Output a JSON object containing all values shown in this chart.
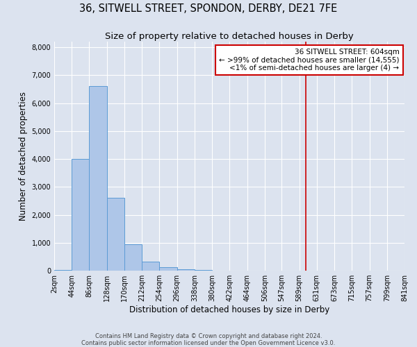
{
  "title": "36, SITWELL STREET, SPONDON, DERBY, DE21 7FE",
  "subtitle": "Size of property relative to detached houses in Derby",
  "xlabel": "Distribution of detached houses by size in Derby",
  "ylabel": "Number of detached properties",
  "bar_color": "#aec6e8",
  "bar_edge_color": "#5b9bd5",
  "background_color": "#dce3ef",
  "bin_edges": [
    2,
    44,
    86,
    128,
    170,
    212,
    254,
    296,
    338,
    380,
    422,
    464,
    506,
    547,
    589,
    631,
    673,
    715,
    757,
    799,
    841
  ],
  "bar_heights": [
    25,
    4000,
    6600,
    2600,
    950,
    320,
    120,
    50,
    30,
    10,
    5,
    3,
    2,
    1,
    0,
    0,
    0,
    0,
    0,
    0
  ],
  "vline_x": 604,
  "vline_color": "#cc0000",
  "annotation_title": "36 SITWELL STREET: 604sqm",
  "annotation_line1": "← >99% of detached houses are smaller (14,555)",
  "annotation_line2": "<1% of semi-detached houses are larger (4) →",
  "annotation_box_color": "#cc0000",
  "annotation_bg": "#ffffff",
  "ylim": [
    0,
    8200
  ],
  "yticks": [
    0,
    1000,
    2000,
    3000,
    4000,
    5000,
    6000,
    7000,
    8000
  ],
  "xtick_labels": [
    "2sqm",
    "44sqm",
    "86sqm",
    "128sqm",
    "170sqm",
    "212sqm",
    "254sqm",
    "296sqm",
    "338sqm",
    "380sqm",
    "422sqm",
    "464sqm",
    "506sqm",
    "547sqm",
    "589sqm",
    "631sqm",
    "673sqm",
    "715sqm",
    "757sqm",
    "799sqm",
    "841sqm"
  ],
  "footer_line1": "Contains HM Land Registry data © Crown copyright and database right 2024.",
  "footer_line2": "Contains public sector information licensed under the Open Government Licence v3.0.",
  "grid_color": "#ffffff",
  "title_fontsize": 10.5,
  "subtitle_fontsize": 9.5,
  "axis_label_fontsize": 8.5,
  "tick_fontsize": 7,
  "footer_fontsize": 6,
  "annotation_fontsize": 7.5
}
